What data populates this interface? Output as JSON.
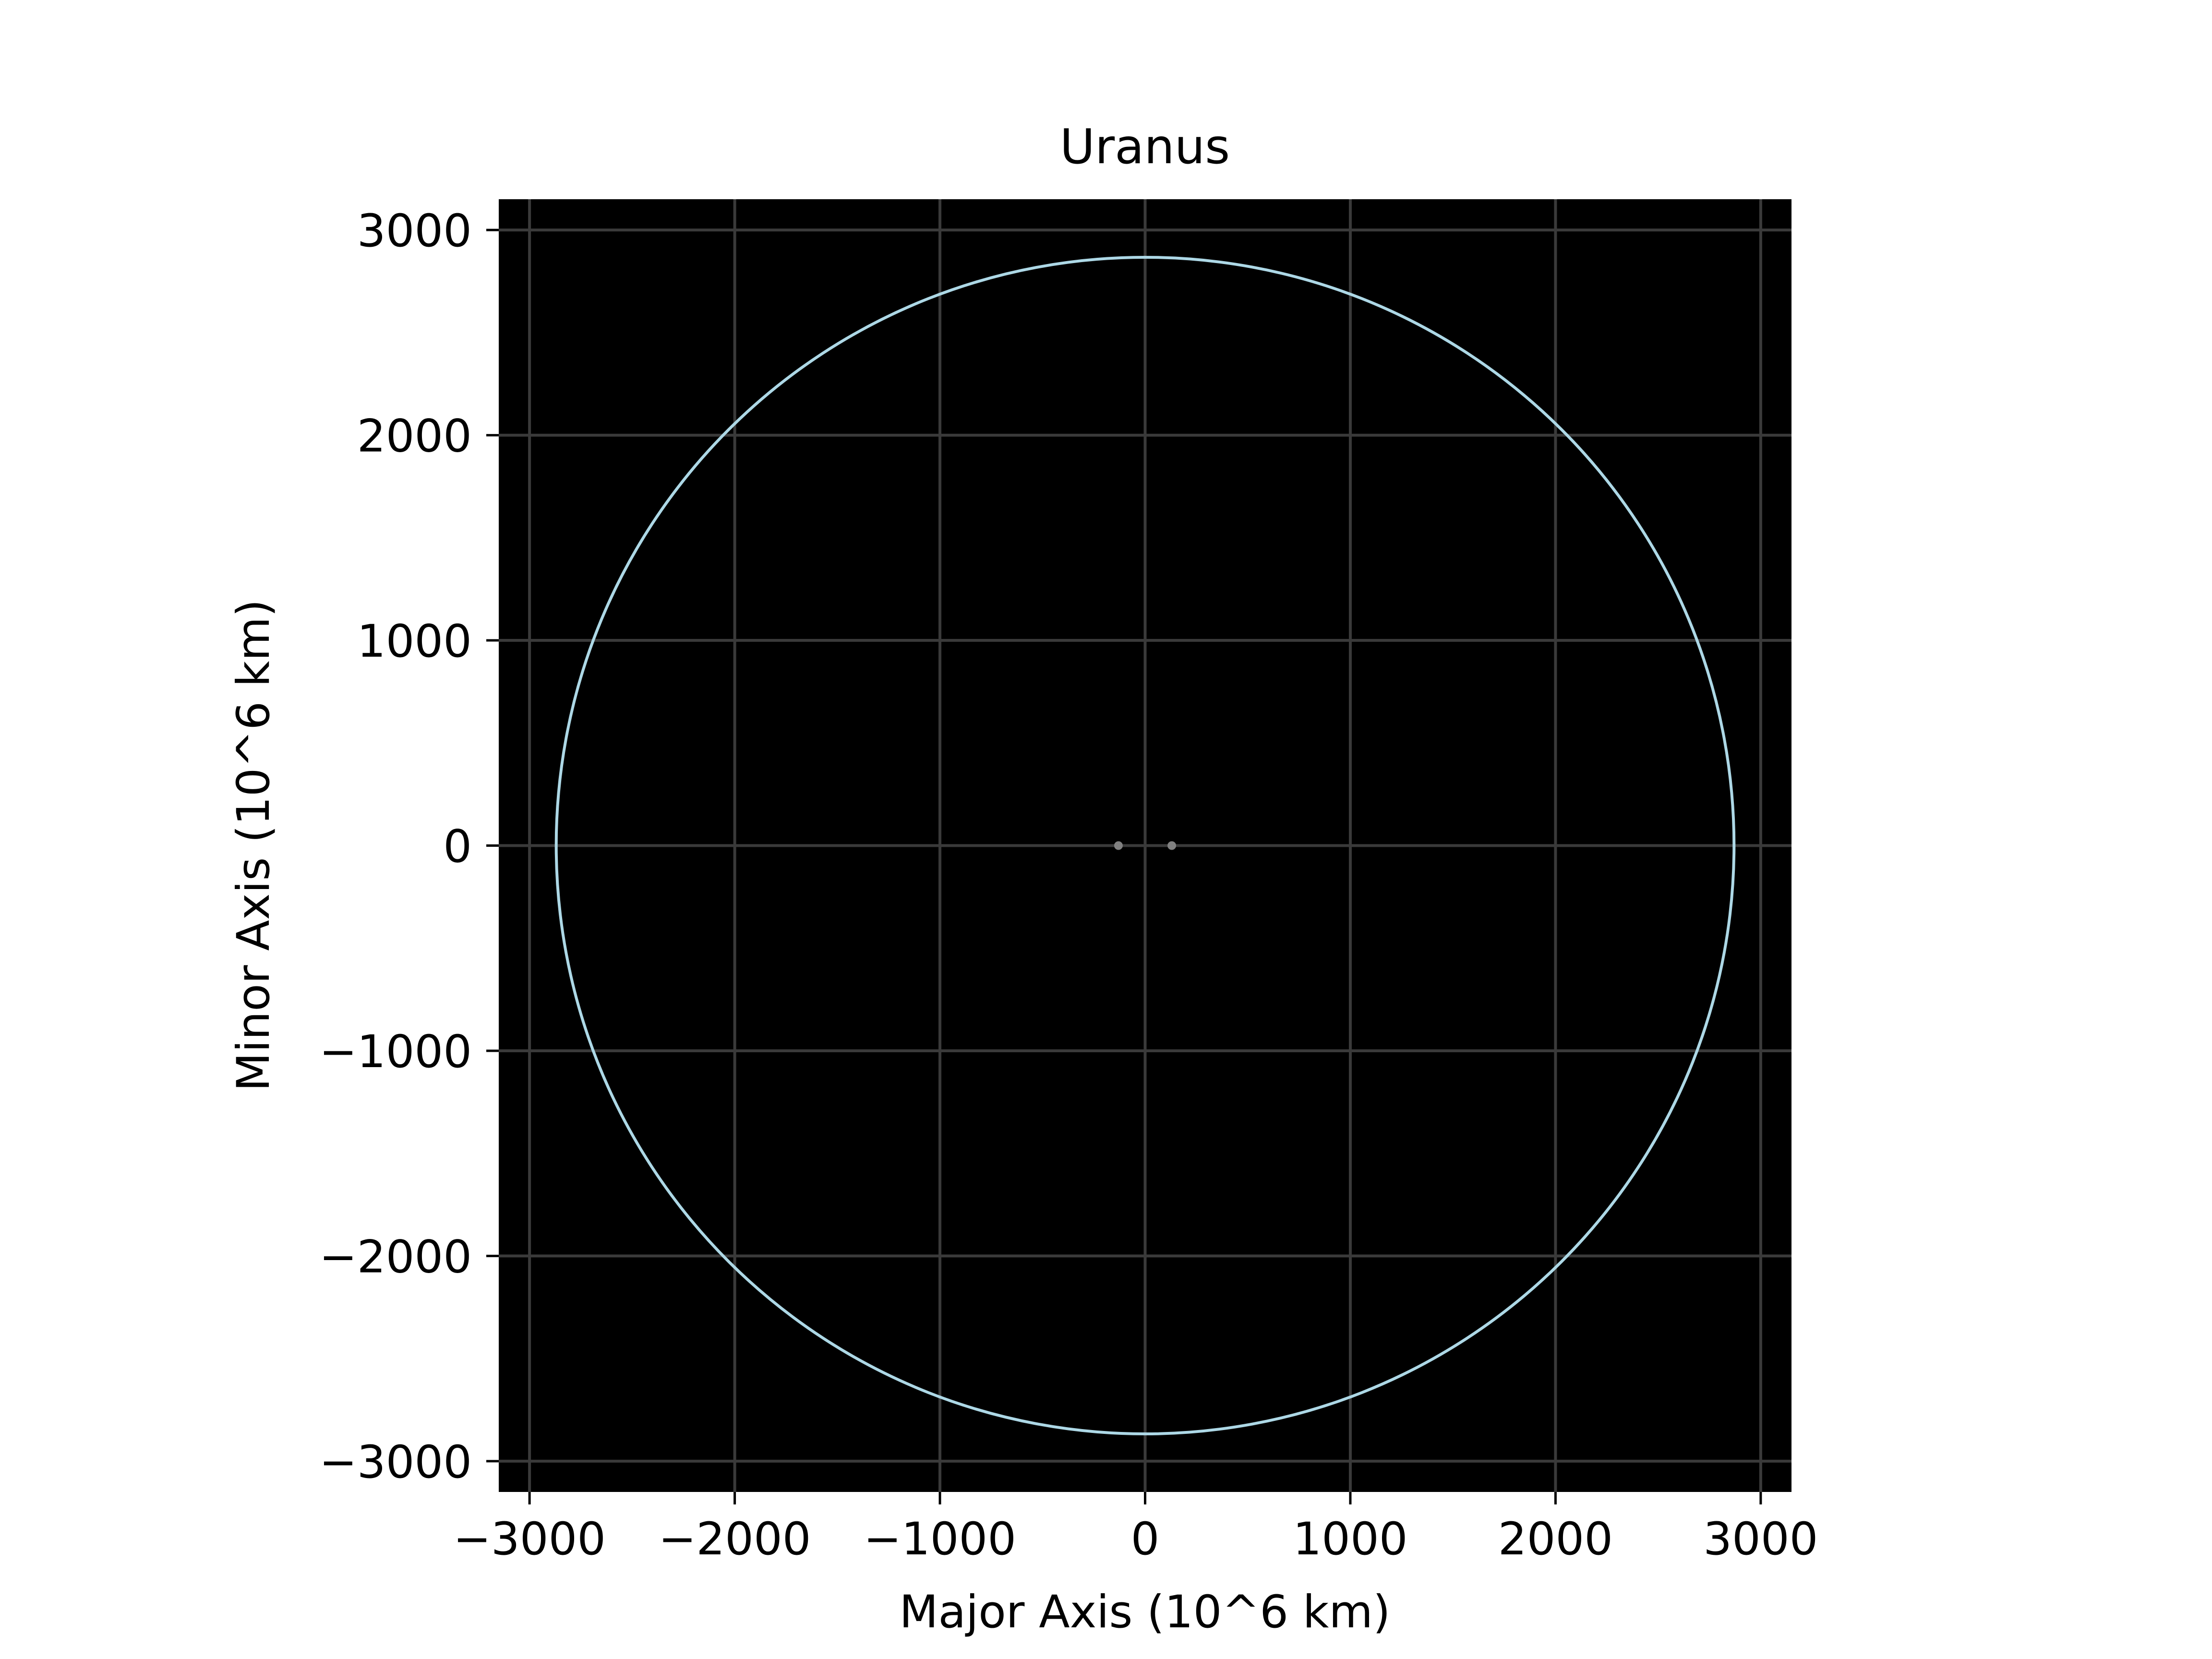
{
  "chart_data": {
    "type": "line",
    "title": "Uranus",
    "xlabel": "Major Axis (10^6 km)",
    "ylabel": "Minor Axis (10^6 km)",
    "xlim": [
      -3150,
      3150
    ],
    "ylim": [
      -3150,
      3150
    ],
    "xticks": [
      -3000,
      -2000,
      -1000,
      0,
      1000,
      2000,
      3000
    ],
    "yticks": [
      -3000,
      -2000,
      -1000,
      0,
      1000,
      2000,
      3000
    ],
    "xtick_labels": [
      "−3000",
      "−2000",
      "−1000",
      "0",
      "1000",
      "2000",
      "3000"
    ],
    "ytick_labels": [
      "−3000",
      "−2000",
      "−1000",
      "0",
      "1000",
      "2000",
      "3000"
    ],
    "grid": true,
    "series": [
      {
        "kind": "ellipse",
        "center": [
          0,
          0
        ],
        "semi_major": 2870,
        "semi_minor": 2867
      }
    ],
    "points": [
      {
        "x": -130,
        "y": 0
      },
      {
        "x": 130,
        "y": 0
      }
    ],
    "colors": {
      "background": "#000000",
      "orbit": "#add8e6",
      "grid": "#3a3a3a",
      "foci": "#808080"
    }
  }
}
